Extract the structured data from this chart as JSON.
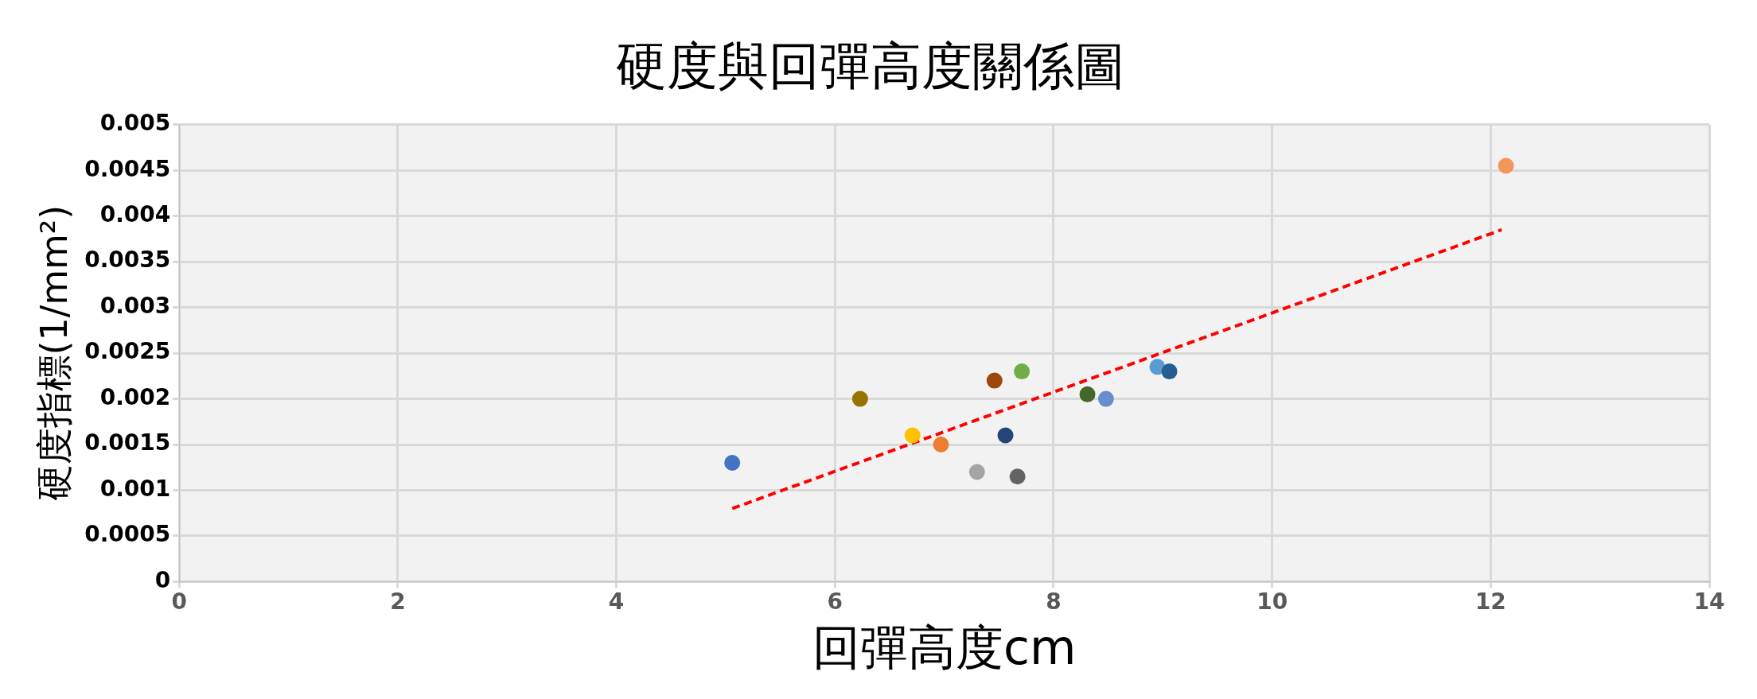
{
  "chart_data": {
    "type": "scatter",
    "title": "硬度與回彈高度關係圖",
    "xlabel": "回彈高度cm",
    "ylabel": "硬度指標(1/mm²)",
    "xlim": [
      0,
      14
    ],
    "xticks": [
      0,
      2,
      4,
      6,
      8,
      10,
      12,
      14
    ],
    "ylim": [
      0,
      0.005
    ],
    "yticks": [
      0,
      0.0005,
      0.001,
      0.0015,
      0.002,
      0.0025,
      0.003,
      0.0035,
      0.004,
      0.0045,
      0.005
    ],
    "grid": true,
    "legend": false,
    "marker": "circle",
    "series": [
      {
        "type": "scatter",
        "x": [
          5.06,
          6.23,
          6.71,
          6.97,
          7.3,
          7.46,
          7.56,
          7.67,
          7.71,
          8.31,
          8.48,
          8.95,
          9.06,
          12.14
        ],
        "values": [
          0.0013,
          0.002,
          0.0016,
          0.0015,
          0.0012,
          0.0022,
          0.0016,
          0.00115,
          0.0023,
          0.00205,
          0.002,
          0.00235,
          0.0023,
          0.00455
        ],
        "colors": [
          "#4472c4",
          "#997300",
          "#ffc000",
          "#ed7d31",
          "#a5a5a5",
          "#9e480e",
          "#264478",
          "#636363",
          "#70ad47",
          "#43682b",
          "#698ed0",
          "#5b9bd5",
          "#255e91",
          "#f1975a"
        ]
      },
      {
        "type": "line",
        "x": [
          5.06,
          12.1
        ],
        "values": [
          0.0008,
          0.00385
        ],
        "color": "#ff0000",
        "line_style": "dashed",
        "marker": "none"
      }
    ]
  }
}
